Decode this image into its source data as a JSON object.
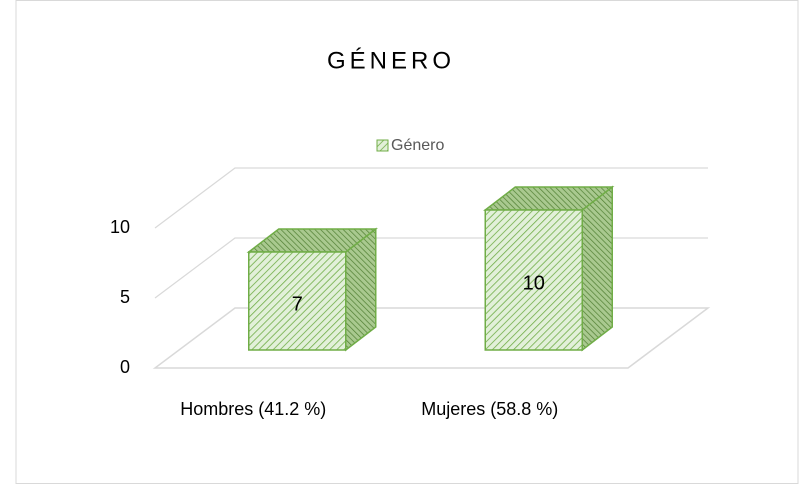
{
  "chart_data": {
    "type": "bar",
    "title": "GÉNERO",
    "categories": [
      "Hombres (41.2 %)",
      "Mujeres (58.8 %)"
    ],
    "series": [
      {
        "name": "Género",
        "color": "#70ad47",
        "values": [
          7,
          10
        ]
      }
    ],
    "ylim": [
      0,
      10
    ],
    "yticks": [
      0,
      5,
      10
    ],
    "grid": true,
    "legend": "top"
  }
}
